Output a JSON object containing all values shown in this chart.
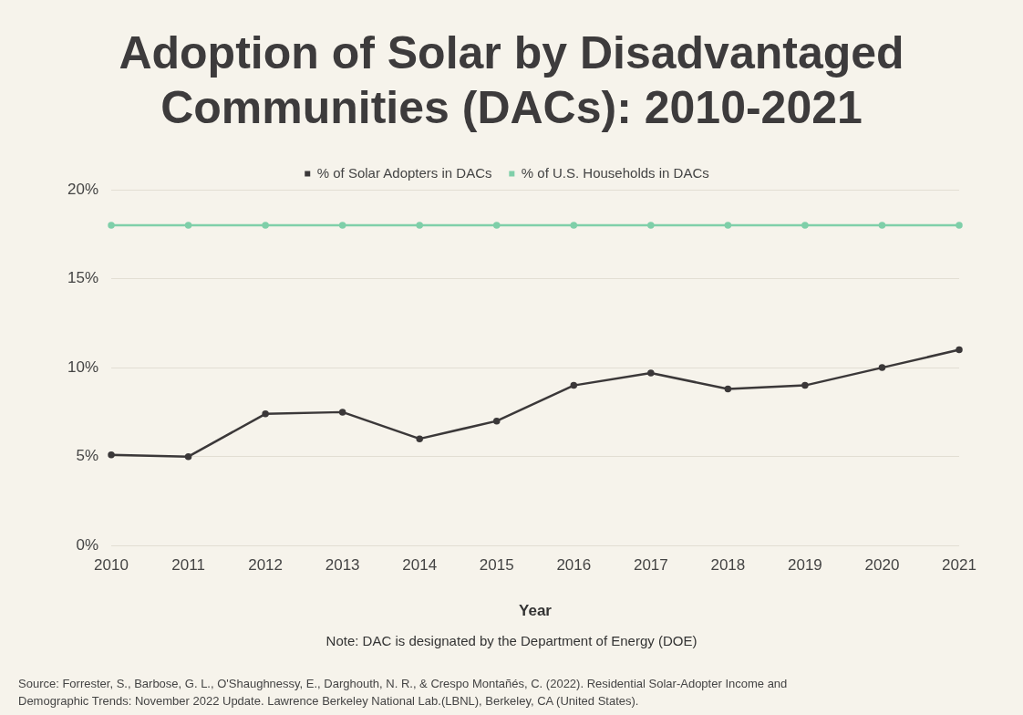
{
  "chart_data": {
    "type": "line",
    "title": "Adoption of Solar by Disadvantaged Communities (DACs): 2010-2021",
    "xlabel": "Year",
    "categories": [
      "2010",
      "2011",
      "2012",
      "2013",
      "2014",
      "2015",
      "2016",
      "2017",
      "2018",
      "2019",
      "2020",
      "2021"
    ],
    "series": [
      {
        "name": "% of Solar Adopters in DACs",
        "color": "#3b3839",
        "values": [
          5.1,
          5.0,
          7.4,
          7.5,
          6.0,
          7.0,
          9.0,
          9.7,
          8.8,
          9.0,
          10.0,
          11.0
        ]
      },
      {
        "name": "% of U.S. Households in DACs",
        "color": "#7fcfa9",
        "values": [
          18,
          18,
          18,
          18,
          18,
          18,
          18,
          18,
          18,
          18,
          18,
          18
        ]
      }
    ],
    "ylim": [
      0,
      20
    ],
    "yticks": [
      {
        "value": 0,
        "label": "0%"
      },
      {
        "value": 5,
        "label": "5%"
      },
      {
        "value": 10,
        "label": "10%"
      },
      {
        "value": 15,
        "label": "15%"
      },
      {
        "value": 20,
        "label": "20%"
      }
    ],
    "grid": "y",
    "legend": "top",
    "marker": "circle",
    "annotations": [
      "Note: DAC is designated by the Department of Energy (DOE)",
      "Source: Forrester, S., Barbose, G. L., O'Shaughnessy, E., Darghouth, N. R., & Crespo Montañés, C. (2022). Residential Solar-Adopter Income and Demographic Trends: November 2022 Update. Lawrence Berkeley National Lab.(LBNL), Berkeley, CA (United States)."
    ]
  }
}
